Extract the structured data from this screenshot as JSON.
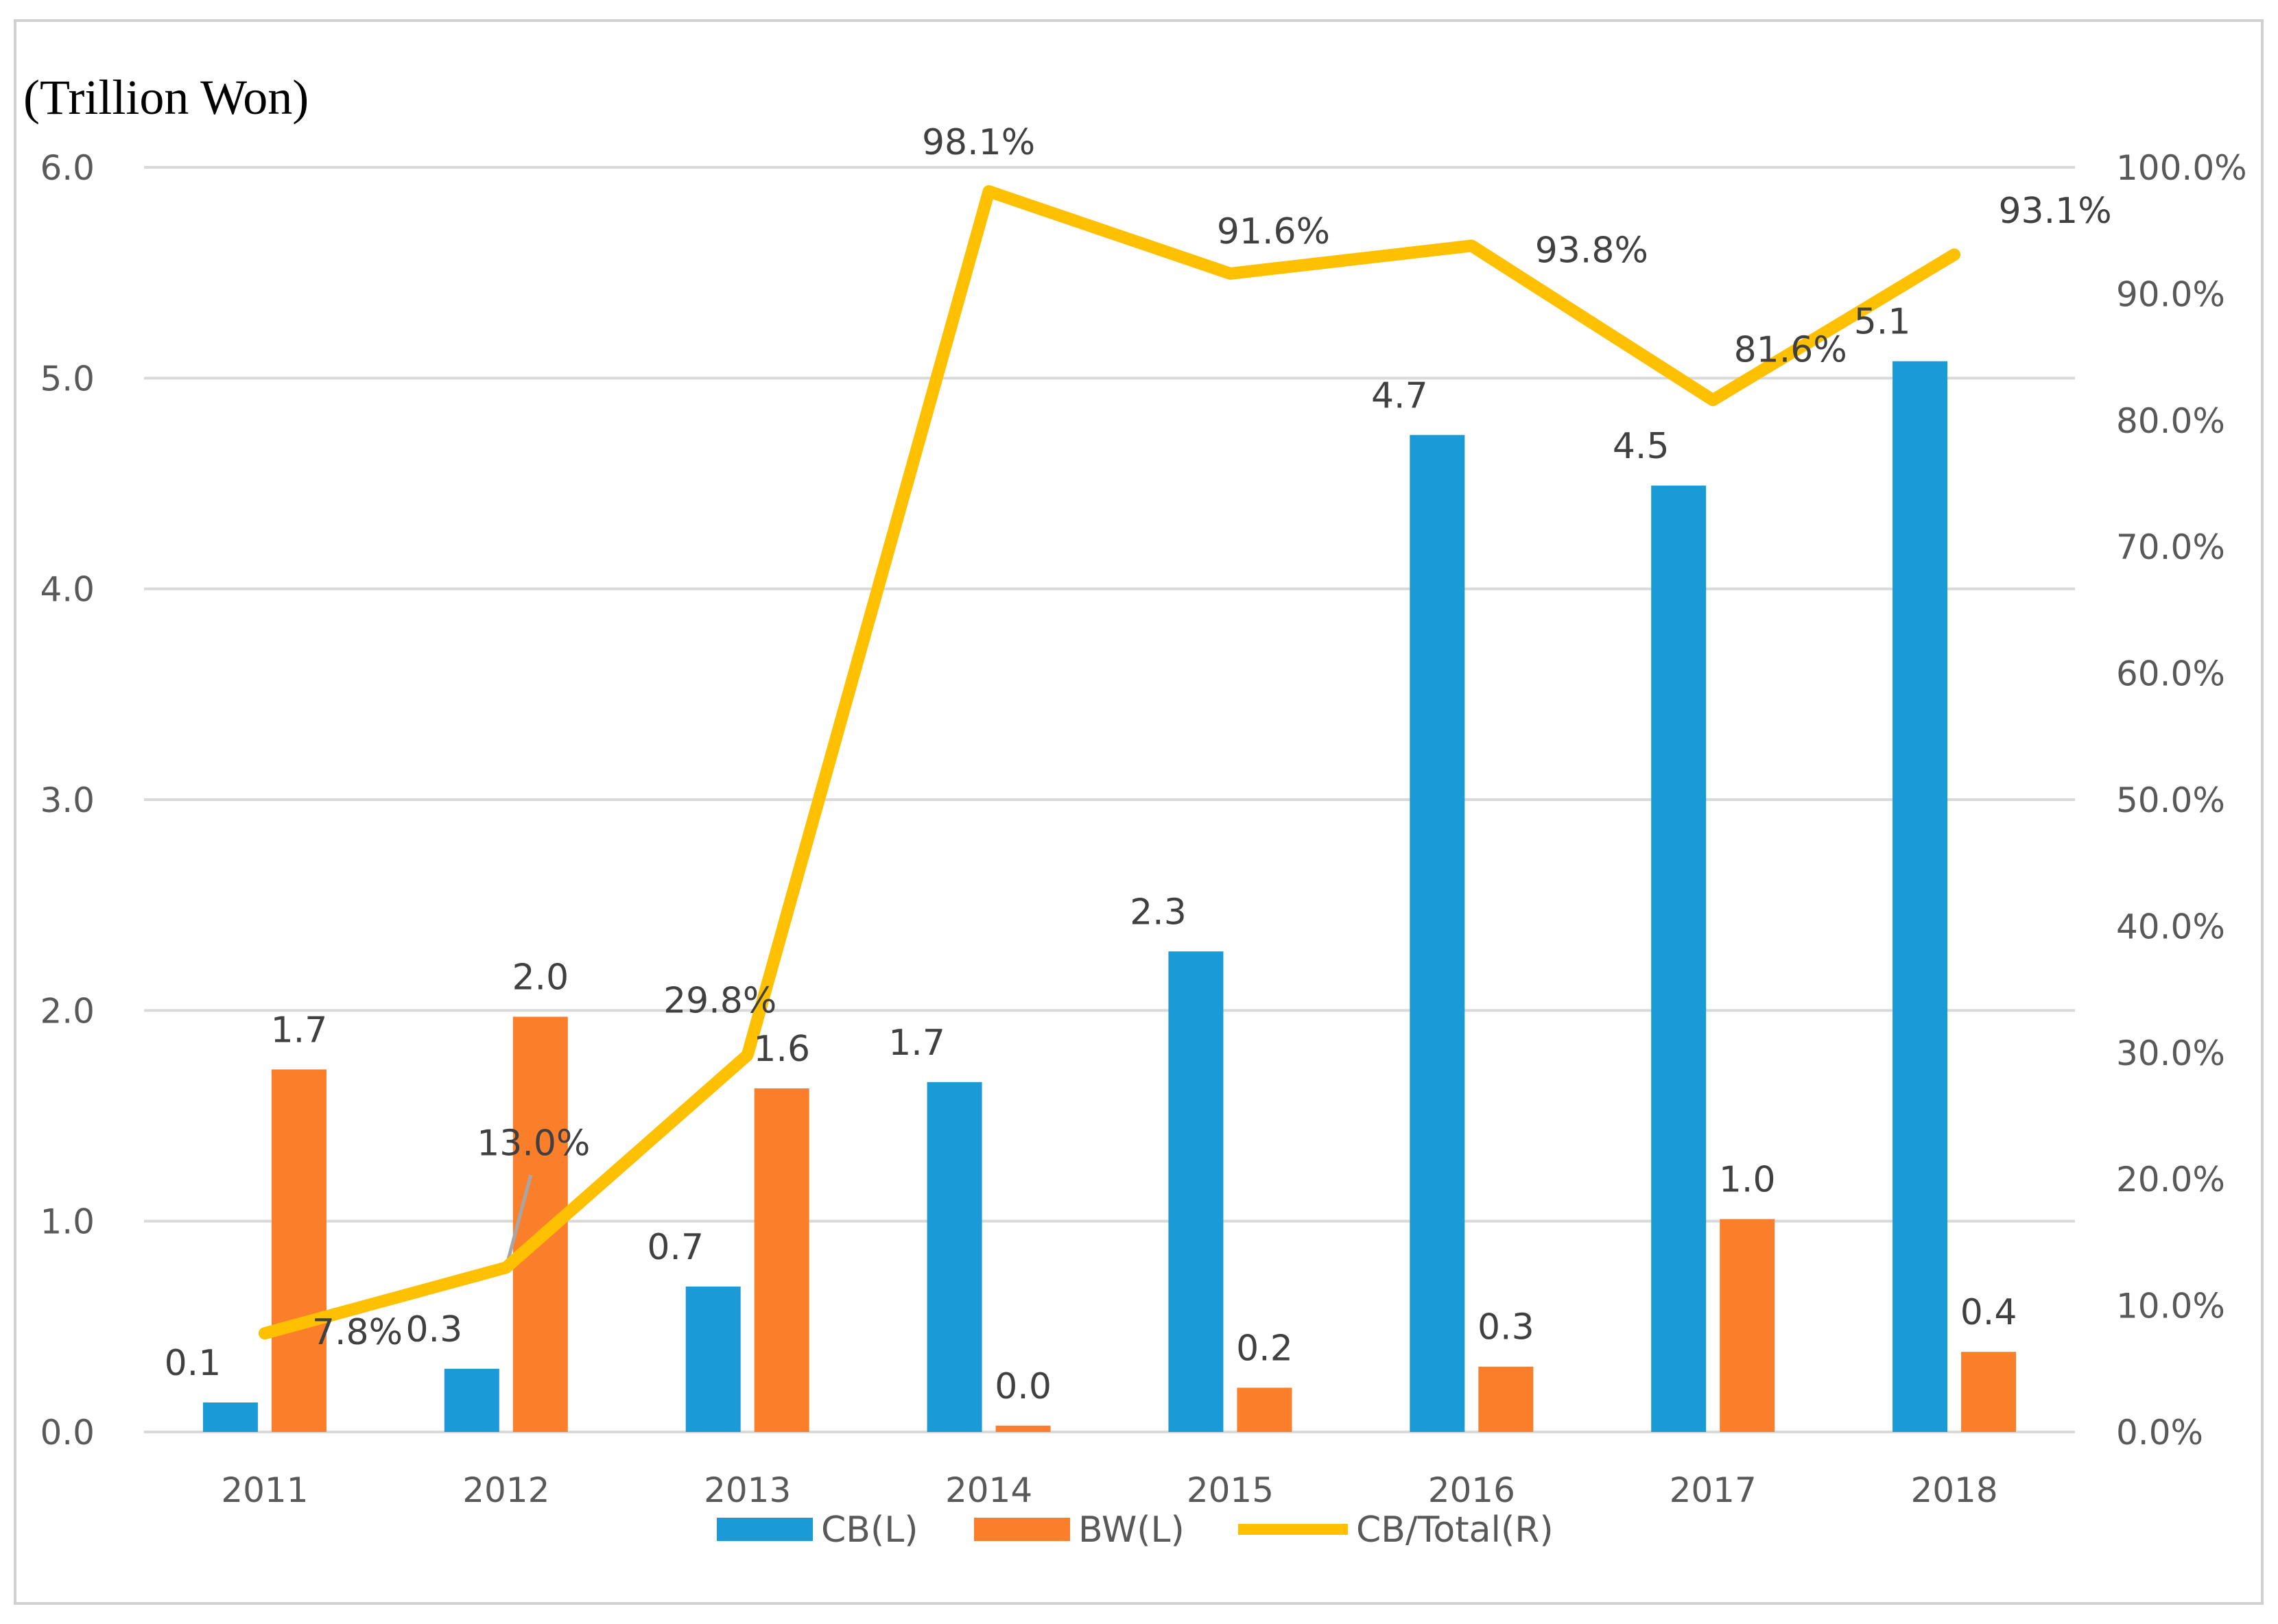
{
  "chart_data": {
    "type": "bar",
    "title": "",
    "unit_label": "(Trillion Won)",
    "categories": [
      "2011",
      "2012",
      "2013",
      "2014",
      "2015",
      "2016",
      "2017",
      "2018"
    ],
    "left_axis": {
      "min": 0,
      "max": 6,
      "step": 1,
      "tick_labels": [
        "0.0",
        "1.0",
        "2.0",
        "3.0",
        "4.0",
        "5.0",
        "6.0"
      ]
    },
    "right_axis": {
      "min": 0,
      "max": 100,
      "step": 10,
      "tick_labels": [
        "0.0%",
        "10.0%",
        "20.0%",
        "30.0%",
        "40.0%",
        "50.0%",
        "60.0%",
        "70.0%",
        "80.0%",
        "90.0%",
        "100.0%"
      ]
    },
    "grid": true,
    "legend_position": "bottom",
    "series": [
      {
        "name": "CB(L)",
        "type": "bar",
        "axis": "left",
        "color": "#1a9bd7",
        "values": [
          0.14,
          0.3,
          0.69,
          1.66,
          2.28,
          4.73,
          4.49,
          5.08
        ],
        "labels": [
          "0.1",
          "0.3",
          "0.7",
          "1.7",
          "2.3",
          "4.7",
          "4.5",
          "5.1"
        ]
      },
      {
        "name": "BW(L)",
        "type": "bar",
        "axis": "left",
        "color": "#fb7f2b",
        "values": [
          1.72,
          1.97,
          1.63,
          0.03,
          0.21,
          0.31,
          1.01,
          0.38
        ],
        "labels": [
          "1.7",
          "2.0",
          "1.6",
          "0.0",
          "0.2",
          "0.3",
          "1.0",
          "0.4"
        ]
      },
      {
        "name": "CB/Total(R)",
        "type": "line",
        "axis": "right",
        "color": "#ffc000",
        "values": [
          7.8,
          13.0,
          29.8,
          98.1,
          91.6,
          93.8,
          81.6,
          93.1
        ],
        "labels": [
          "7.8%",
          "13.0%",
          "29.8%",
          "98.1%",
          "91.6%",
          "93.8%",
          "81.6%",
          "93.1%"
        ]
      }
    ]
  }
}
